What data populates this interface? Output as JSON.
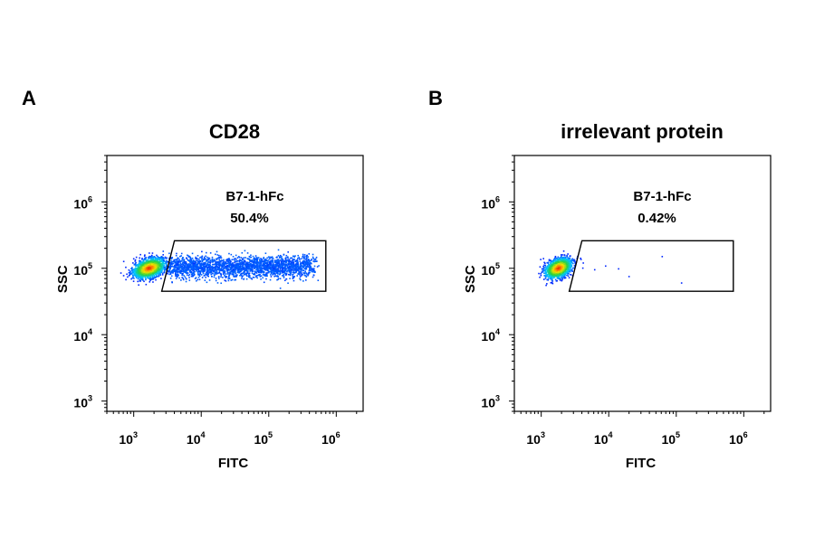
{
  "chart_data": [
    {
      "type": "scatter",
      "panel_label": "A",
      "title": "CD28",
      "xlabel": "FITC",
      "ylabel": "SSC",
      "x_scale": "log",
      "y_scale": "log",
      "xlim": [
        400,
        2500000
      ],
      "ylim": [
        700,
        5000000
      ],
      "x_ticks": [
        {
          "value": 1000,
          "base": "10",
          "exp": "3"
        },
        {
          "value": 10000,
          "base": "10",
          "exp": "4"
        },
        {
          "value": 100000,
          "base": "10",
          "exp": "5"
        },
        {
          "value": 1000000,
          "base": "10",
          "exp": "6"
        }
      ],
      "y_ticks": [
        {
          "value": 1000,
          "base": "10",
          "exp": "3"
        },
        {
          "value": 10000,
          "base": "10",
          "exp": "4"
        },
        {
          "value": 100000,
          "base": "10",
          "exp": "5"
        },
        {
          "value": 1000000,
          "base": "10",
          "exp": "6"
        }
      ],
      "gate": {
        "name": "B7-1-hFc",
        "percent": "50.4%",
        "vertices": [
          [
            4000,
            260000
          ],
          [
            700000,
            260000
          ],
          [
            700000,
            45000
          ],
          [
            2600,
            45000
          ]
        ]
      },
      "populations": [
        {
          "label": "negative",
          "center": [
            1700,
            100000
          ],
          "spread_log": [
            0.12,
            0.08
          ],
          "weight": 0.5,
          "color_hot": "#e03010",
          "color_cold": "#1030ff"
        },
        {
          "label": "positive",
          "center_range_x": [
            3500,
            450000
          ],
          "center_y": 105000,
          "spread_log_y": 0.08,
          "weight": 0.5
        }
      ]
    },
    {
      "type": "scatter",
      "panel_label": "B",
      "title": "irrelevant protein",
      "xlabel": "FITC",
      "ylabel": "SSC",
      "x_scale": "log",
      "y_scale": "log",
      "xlim": [
        400,
        2500000
      ],
      "ylim": [
        700,
        5000000
      ],
      "x_ticks": [
        {
          "value": 1000,
          "base": "10",
          "exp": "3"
        },
        {
          "value": 10000,
          "base": "10",
          "exp": "4"
        },
        {
          "value": 100000,
          "base": "10",
          "exp": "5"
        },
        {
          "value": 1000000,
          "base": "10",
          "exp": "6"
        }
      ],
      "y_ticks": [
        {
          "value": 1000,
          "base": "10",
          "exp": "3"
        },
        {
          "value": 10000,
          "base": "10",
          "exp": "4"
        },
        {
          "value": 100000,
          "base": "10",
          "exp": "5"
        },
        {
          "value": 1000000,
          "base": "10",
          "exp": "6"
        }
      ],
      "gate": {
        "name": "B7-1-hFc",
        "percent": "0.42%",
        "vertices": [
          [
            4000,
            260000
          ],
          [
            700000,
            260000
          ],
          [
            700000,
            45000
          ],
          [
            2600,
            45000
          ]
        ]
      },
      "populations": [
        {
          "label": "negative",
          "center": [
            1800,
            100000
          ],
          "spread_log": [
            0.1,
            0.08
          ],
          "weight": 0.996
        },
        {
          "label": "positive",
          "points": [
            [
              4200,
              120000
            ],
            [
              6200,
              95000
            ],
            [
              9000,
              108000
            ],
            [
              14000,
              98000
            ],
            [
              20000,
              75000
            ],
            [
              62000,
              150000
            ],
            [
              120000,
              60000
            ]
          ]
        }
      ]
    }
  ]
}
